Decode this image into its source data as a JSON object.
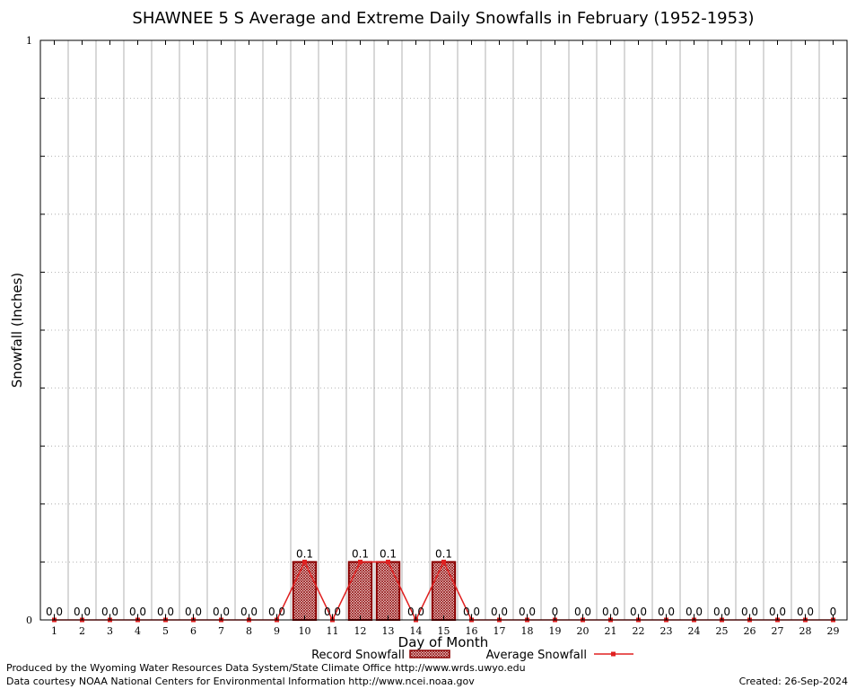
{
  "chart_data": {
    "type": "bar",
    "title": "SHAWNEE 5 S Average and Extreme Daily Snowfalls in February (1952-1953)",
    "xlabel": "Day of Month",
    "ylabel": "Snowfall (Inches)",
    "ylim": [
      0,
      1
    ],
    "y_tick_labels": [
      "0",
      "1"
    ],
    "grid": true,
    "categories": [
      "1",
      "2",
      "3",
      "4",
      "5",
      "6",
      "7",
      "8",
      "9",
      "10",
      "11",
      "12",
      "13",
      "14",
      "15",
      "16",
      "17",
      "18",
      "19",
      "20",
      "21",
      "22",
      "23",
      "24",
      "25",
      "26",
      "27",
      "28",
      "29"
    ],
    "series": [
      {
        "name": "Record Snowfall",
        "kind": "bar",
        "values": [
          0,
          0,
          0,
          0,
          0,
          0,
          0,
          0,
          0,
          0.1,
          0,
          0.1,
          0.1,
          0,
          0.1,
          0,
          0,
          0,
          0,
          0,
          0,
          0,
          0,
          0,
          0,
          0,
          0,
          0,
          0
        ]
      },
      {
        "name": "Average Snowfall",
        "kind": "line",
        "values": [
          0,
          0,
          0,
          0,
          0,
          0,
          0,
          0,
          0,
          0.1,
          0,
          0.1,
          0.1,
          0,
          0.1,
          0,
          0,
          0,
          0,
          0,
          0,
          0,
          0,
          0,
          0,
          0,
          0,
          0,
          0
        ]
      }
    ],
    "data_labels": [
      "0.0",
      "0.0",
      "0.0",
      "0.0",
      "0.0",
      "0.0",
      "0.0",
      "0.0",
      "0.0",
      "0.1",
      "0.0",
      "0.1",
      "0.1",
      "0.0",
      "0.1",
      "0.0",
      "0.0",
      "0.0",
      "0",
      "0.0",
      "0.0",
      "0.0",
      "0.0",
      "0.0",
      "0.0",
      "0.0",
      "0.0",
      "0.0",
      "0"
    ],
    "legend_placement": "bottom-center",
    "colors": {
      "bar_stroke": "#8b0000",
      "bar_fill": "#c08080",
      "line": "#e02020",
      "grid_vertical": "#b0b0b0",
      "grid_horizontal": "#a0a0a0"
    }
  },
  "footer": {
    "line1": "Produced by the Wyoming Water Resources Data System/State Climate Office http://www.wrds.uwyo.edu",
    "line2": "Data courtesy NOAA National Centers for Environmental Information http://www.ncei.noaa.gov",
    "created": "Created:  26-Sep-2024"
  }
}
